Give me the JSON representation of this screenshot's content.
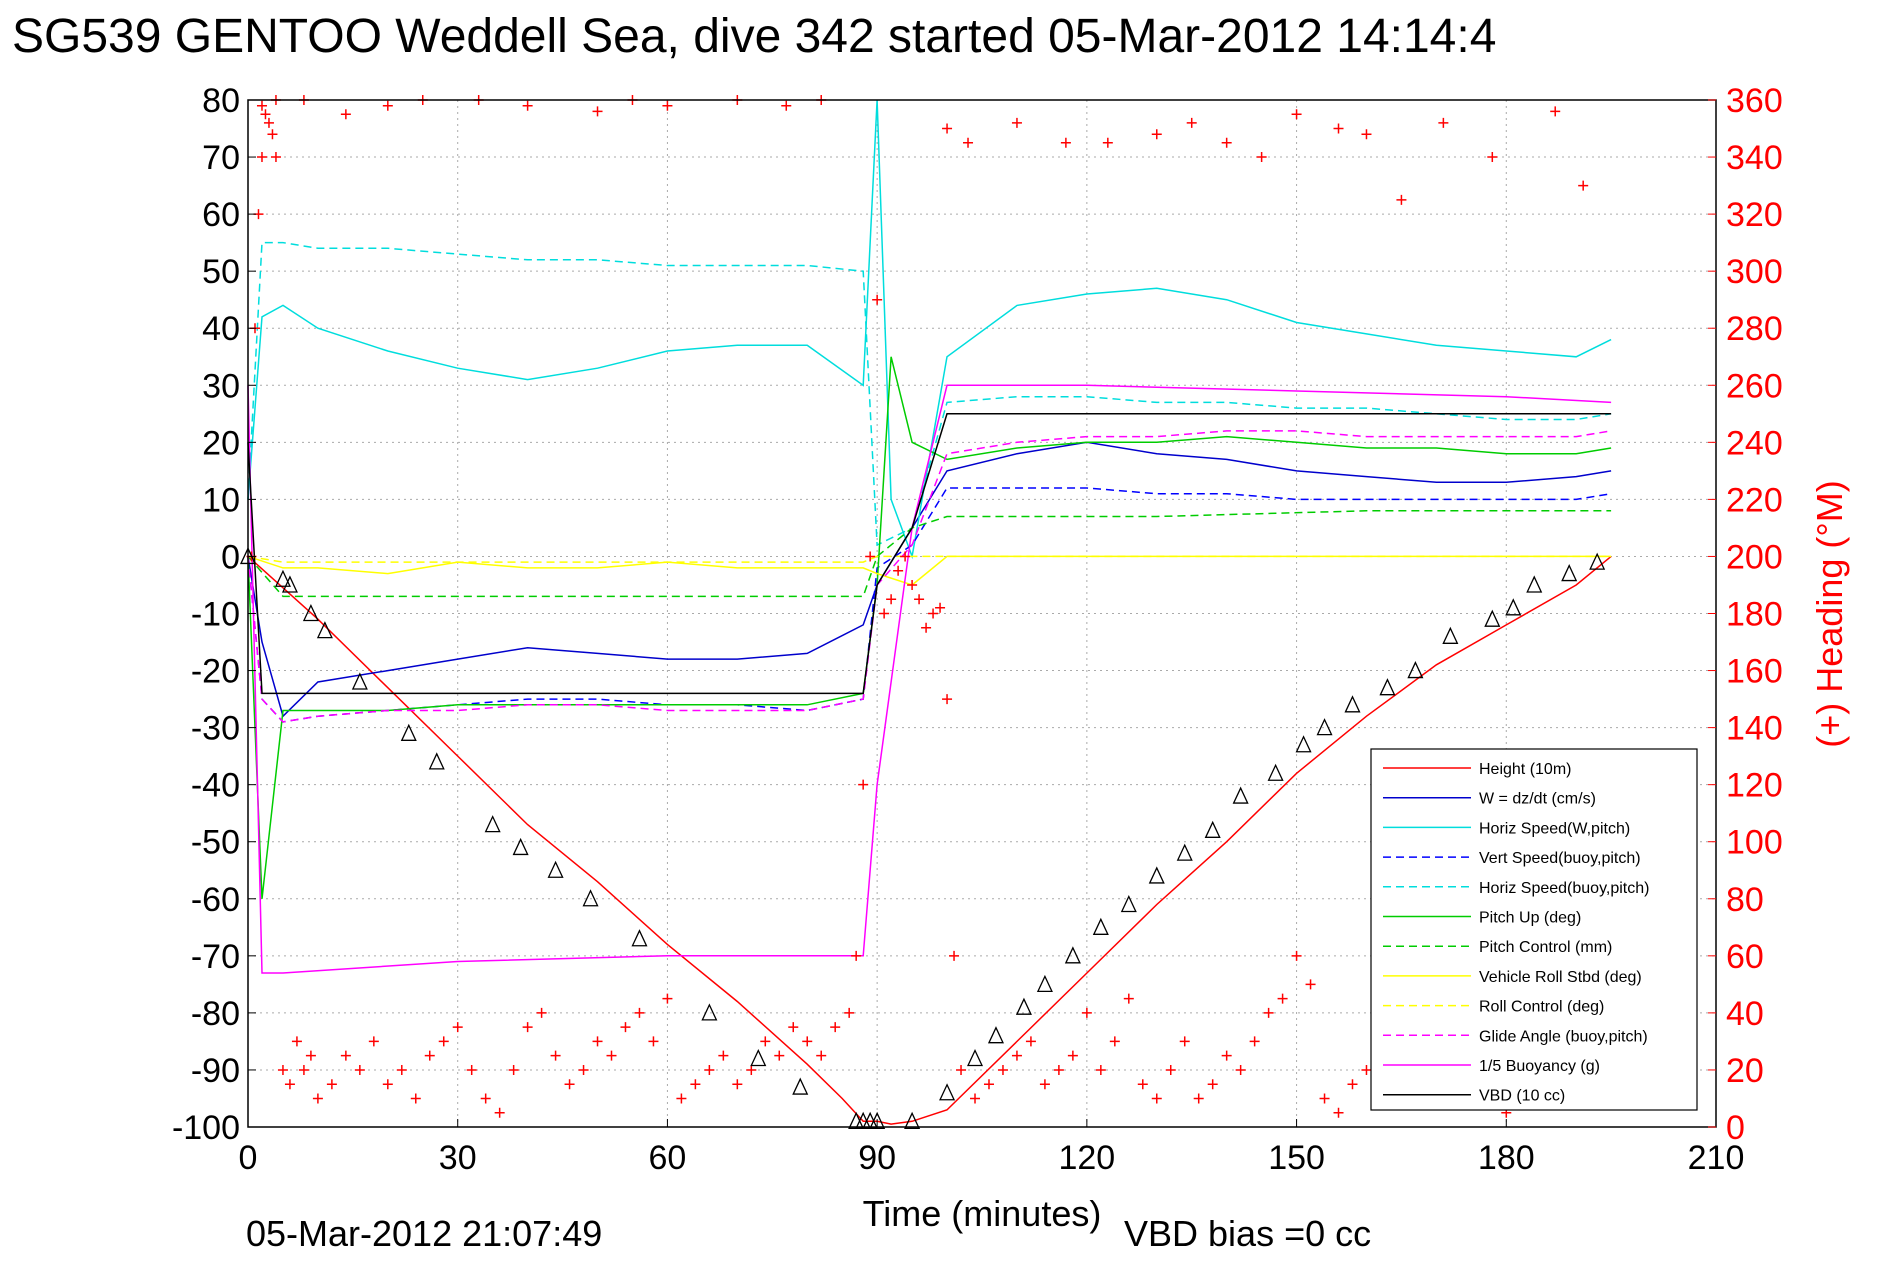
{
  "chart_data": {
    "type": "line",
    "title": "SG539 GENTOO Weddell Sea, dive 342 started 05-Mar-2012 14:14:4",
    "xlabel": "Time (minutes)",
    "ylabel": "",
    "ylabel_right": "(+) Heading (°M)",
    "xlim": [
      0,
      210
    ],
    "ylim": [
      -100,
      80
    ],
    "ylim_right": [
      0,
      360
    ],
    "xticks": [
      "0",
      "30",
      "60",
      "90",
      "120",
      "150",
      "180",
      "210"
    ],
    "yticks": [
      "80",
      "70",
      "60",
      "50",
      "40",
      "30",
      "20",
      "10",
      "0",
      "-10",
      "-20",
      "-30",
      "-40",
      "-50",
      "-60",
      "-70",
      "-80",
      "-90",
      "-100"
    ],
    "yticks_right": [
      "360",
      "340",
      "320",
      "300",
      "280",
      "260",
      "240",
      "220",
      "200",
      "180",
      "160",
      "140",
      "120",
      "100",
      "80",
      "60",
      "40",
      "20",
      "0"
    ],
    "grid": true,
    "legend_position": "bottom-right",
    "footer_left": "05-Mar-2012 21:07:49",
    "footer_right": "VBD bias =0 cc",
    "series": [
      {
        "name": "Height (10m)",
        "color": "#ff0000",
        "dash": false,
        "x": [
          0,
          10,
          20,
          30,
          40,
          50,
          60,
          70,
          80,
          85,
          88,
          90,
          92,
          95,
          100,
          110,
          120,
          130,
          140,
          150,
          160,
          170,
          180,
          190,
          195
        ],
        "y": [
          0,
          -11,
          -23,
          -35,
          -47,
          -57,
          -68,
          -78,
          -89,
          -95,
          -99,
          -99,
          -99.5,
          -99,
          -97,
          -85,
          -73,
          -61,
          -50,
          -38,
          -28,
          -19,
          -12,
          -5,
          0
        ]
      },
      {
        "name": "W = dz/dt (cm/s)",
        "color": "#0000cc",
        "dash": false,
        "x": [
          0,
          2,
          5,
          10,
          20,
          30,
          40,
          50,
          60,
          70,
          80,
          88,
          90,
          95,
          100,
          110,
          120,
          130,
          140,
          150,
          160,
          170,
          180,
          190,
          195
        ],
        "y": [
          0,
          -15,
          -28,
          -22,
          -20,
          -18,
          -16,
          -17,
          -18,
          -18,
          -17,
          -12,
          -5,
          5,
          15,
          18,
          20,
          18,
          17,
          15,
          14,
          13,
          13,
          14,
          15
        ]
      },
      {
        "name": "Horiz Speed(W,pitch)",
        "color": "#00dddd",
        "dash": false,
        "x": [
          0,
          2,
          5,
          10,
          20,
          30,
          40,
          50,
          60,
          70,
          80,
          88,
          90,
          92,
          95,
          100,
          110,
          120,
          130,
          140,
          150,
          160,
          170,
          180,
          190,
          195
        ],
        "y": [
          10,
          42,
          44,
          40,
          36,
          33,
          31,
          33,
          36,
          37,
          37,
          30,
          80,
          10,
          0,
          35,
          44,
          46,
          47,
          45,
          41,
          39,
          37,
          36,
          35,
          38
        ]
      },
      {
        "name": "Vert Speed(buoy,pitch)",
        "color": "#0000ff",
        "dash": true,
        "x": [
          0,
          2,
          5,
          10,
          20,
          30,
          40,
          50,
          60,
          70,
          80,
          88,
          90,
          95,
          100,
          110,
          120,
          130,
          140,
          150,
          160,
          170,
          180,
          190,
          195
        ],
        "y": [
          0,
          -25,
          -29,
          -28,
          -27,
          -26,
          -25,
          -25,
          -26,
          -26,
          -27,
          -25,
          -2,
          2,
          12,
          12,
          12,
          11,
          11,
          10,
          10,
          10,
          10,
          10,
          11
        ]
      },
      {
        "name": "Horiz Speed(buoy,pitch)",
        "color": "#00dddd",
        "dash": true,
        "x": [
          0,
          2,
          5,
          10,
          20,
          30,
          40,
          50,
          60,
          70,
          80,
          88,
          90,
          95,
          100,
          110,
          120,
          130,
          140,
          150,
          160,
          170,
          180,
          190,
          195
        ],
        "y": [
          10,
          55,
          55,
          54,
          54,
          53,
          52,
          52,
          51,
          51,
          51,
          50,
          2,
          5,
          27,
          28,
          28,
          27,
          27,
          26,
          26,
          25,
          24,
          24,
          25
        ]
      },
      {
        "name": "Pitch Up (deg)",
        "color": "#00cc00",
        "dash": false,
        "x": [
          0,
          2,
          5,
          10,
          20,
          30,
          40,
          50,
          60,
          70,
          80,
          88,
          90,
          92,
          95,
          100,
          110,
          120,
          130,
          140,
          150,
          160,
          170,
          180,
          190,
          195
        ],
        "y": [
          0,
          -60,
          -27,
          -27,
          -27,
          -26,
          -26,
          -26,
          -26,
          -26,
          -26,
          -24,
          -5,
          35,
          20,
          17,
          19,
          20,
          20,
          21,
          20,
          19,
          19,
          18,
          18,
          19
        ]
      },
      {
        "name": "Pitch Control (mm)",
        "color": "#00cc00",
        "dash": true,
        "x": [
          0,
          5,
          10,
          30,
          60,
          88,
          90,
          95,
          100,
          130,
          160,
          195
        ],
        "y": [
          0,
          -7,
          -7,
          -7,
          -7,
          -7,
          0,
          5,
          7,
          7,
          8,
          8
        ]
      },
      {
        "name": "Vehicle Roll Stbd (deg)",
        "color": "#ffff00",
        "dash": false,
        "x": [
          0,
          5,
          10,
          20,
          30,
          40,
          50,
          60,
          70,
          80,
          88,
          90,
          95,
          100,
          110,
          120,
          130,
          140,
          150,
          160,
          170,
          180,
          190,
          195
        ],
        "y": [
          0,
          -2,
          -2,
          -3,
          -1,
          -2,
          -2,
          -1,
          -2,
          -2,
          -2,
          -3,
          -5,
          0,
          0,
          0,
          0,
          0,
          0,
          0,
          0,
          0,
          0,
          0
        ]
      },
      {
        "name": "Roll Control (deg)",
        "color": "#ffff00",
        "dash": true,
        "x": [
          0,
          5,
          30,
          60,
          88,
          90,
          100,
          130,
          160,
          195
        ],
        "y": [
          0,
          -1,
          -1,
          -1,
          -1,
          0,
          0,
          0,
          0,
          0
        ]
      },
      {
        "name": "Glide Angle (buoy,pitch)",
        "color": "#ff00ff",
        "dash": true,
        "x": [
          0,
          2,
          5,
          10,
          20,
          30,
          40,
          50,
          60,
          70,
          80,
          88,
          90,
          95,
          100,
          110,
          120,
          130,
          140,
          150,
          160,
          170,
          180,
          190,
          195
        ],
        "y": [
          0,
          -25,
          -29,
          -28,
          -27,
          -27,
          -26,
          -26,
          -27,
          -27,
          -27,
          -25,
          -5,
          2,
          18,
          20,
          21,
          21,
          22,
          22,
          21,
          21,
          21,
          21,
          22
        ]
      },
      {
        "name": "1/5 Buoyancy (g)",
        "color": "#ff00ff",
        "dash": false,
        "x": [
          0,
          2,
          5,
          30,
          60,
          88,
          90,
          95,
          100,
          120,
          150,
          180,
          195
        ],
        "y": [
          30,
          -73,
          -73,
          -71,
          -70,
          -70,
          -40,
          5,
          30,
          30,
          29,
          28,
          27
        ]
      },
      {
        "name": "VBD (10 cc)",
        "color": "#000000",
        "dash": false,
        "x": [
          0,
          2,
          5,
          30,
          60,
          88,
          90,
          95,
          100,
          130,
          160,
          195
        ],
        "y": [
          20,
          -24,
          -24,
          -24,
          -24,
          -24,
          -5,
          5,
          25,
          25,
          25,
          25
        ]
      }
    ],
    "markers": {
      "x": [
        0,
        5,
        6,
        9,
        11,
        16,
        23,
        27,
        35,
        39,
        44,
        49,
        56,
        66,
        73,
        79,
        87,
        88,
        89,
        90,
        95,
        100,
        104,
        107,
        111,
        114,
        118,
        122,
        126,
        130,
        134,
        138,
        142,
        147,
        151,
        154,
        158,
        163,
        167,
        172,
        178,
        181,
        184,
        189,
        193
      ],
      "y": [
        0,
        -4,
        -5,
        -10,
        -13,
        -22,
        -31,
        -36,
        -47,
        -51,
        -55,
        -60,
        -67,
        -80,
        -88,
        -93,
        -99,
        -99,
        -99,
        -99,
        -99,
        -94,
        -88,
        -84,
        -79,
        -75,
        -70,
        -65,
        -61,
        -56,
        -52,
        -48,
        -42,
        -38,
        -33,
        -30,
        -26,
        -23,
        -20,
        -14,
        -11,
        -9,
        -5,
        -3,
        -1
      ]
    },
    "heading": {
      "name": "(+) Heading (°M)",
      "color": "#ff0000",
      "x": [
        0.5,
        1,
        1.5,
        2,
        2.5,
        3,
        3.5,
        4,
        5,
        6,
        7,
        8,
        9,
        10,
        12,
        14,
        16,
        18,
        20,
        22,
        24,
        26,
        28,
        30,
        32,
        34,
        36,
        38,
        40,
        42,
        44,
        46,
        48,
        50,
        52,
        54,
        56,
        58,
        60,
        62,
        64,
        66,
        68,
        70,
        72,
        74,
        76,
        78,
        80,
        82,
        84,
        86,
        87,
        88,
        89,
        90,
        91,
        92,
        93,
        94,
        95,
        96,
        97,
        98,
        99,
        100,
        101,
        102,
        104,
        106,
        108,
        110,
        112,
        114,
        116,
        118,
        120,
        122,
        124,
        126,
        128,
        130,
        132,
        134,
        136,
        138,
        140,
        142,
        144,
        146,
        148,
        150,
        152,
        154,
        156,
        158,
        160,
        162,
        164,
        166,
        168,
        170,
        172,
        174,
        176,
        178,
        180,
        182,
        184,
        186,
        188,
        190,
        192,
        194
      ],
      "y": [
        200,
        280,
        320,
        340,
        355,
        352,
        348,
        340,
        20,
        15,
        30,
        20,
        25,
        10,
        15,
        25,
        20,
        30,
        15,
        20,
        10,
        25,
        30,
        35,
        20,
        10,
        5,
        20,
        35,
        40,
        25,
        15,
        20,
        30,
        25,
        35,
        40,
        30,
        45,
        10,
        15,
        20,
        25,
        15,
        20,
        30,
        25,
        35,
        30,
        25,
        35,
        40,
        60,
        120,
        200,
        290,
        180,
        185,
        195,
        200,
        190,
        185,
        175,
        180,
        182,
        150,
        60,
        20,
        10,
        15,
        20,
        25,
        30,
        15,
        20,
        25,
        40,
        20,
        30,
        45,
        15,
        10,
        20,
        30,
        10,
        15,
        25,
        20,
        30,
        40,
        45,
        60,
        50,
        10,
        5,
        15,
        20,
        25,
        30,
        10,
        20,
        15,
        25,
        20,
        30,
        15,
        5,
        10,
        15,
        20,
        10,
        25,
        30,
        20
      ]
    },
    "heading_top": {
      "x": [
        2,
        4,
        8,
        14,
        20,
        25,
        33,
        40,
        50,
        55,
        60,
        70,
        77,
        82,
        100,
        103,
        110,
        117,
        123,
        130,
        135,
        140,
        145,
        150,
        156,
        160,
        165,
        171,
        178,
        187,
        191
      ],
      "y": [
        358,
        360,
        360,
        355,
        358,
        360,
        360,
        358,
        356,
        360,
        358,
        360,
        358,
        360,
        350,
        345,
        352,
        345,
        345,
        348,
        352,
        345,
        340,
        355,
        350,
        348,
        325,
        352,
        340,
        356,
        330
      ]
    }
  }
}
